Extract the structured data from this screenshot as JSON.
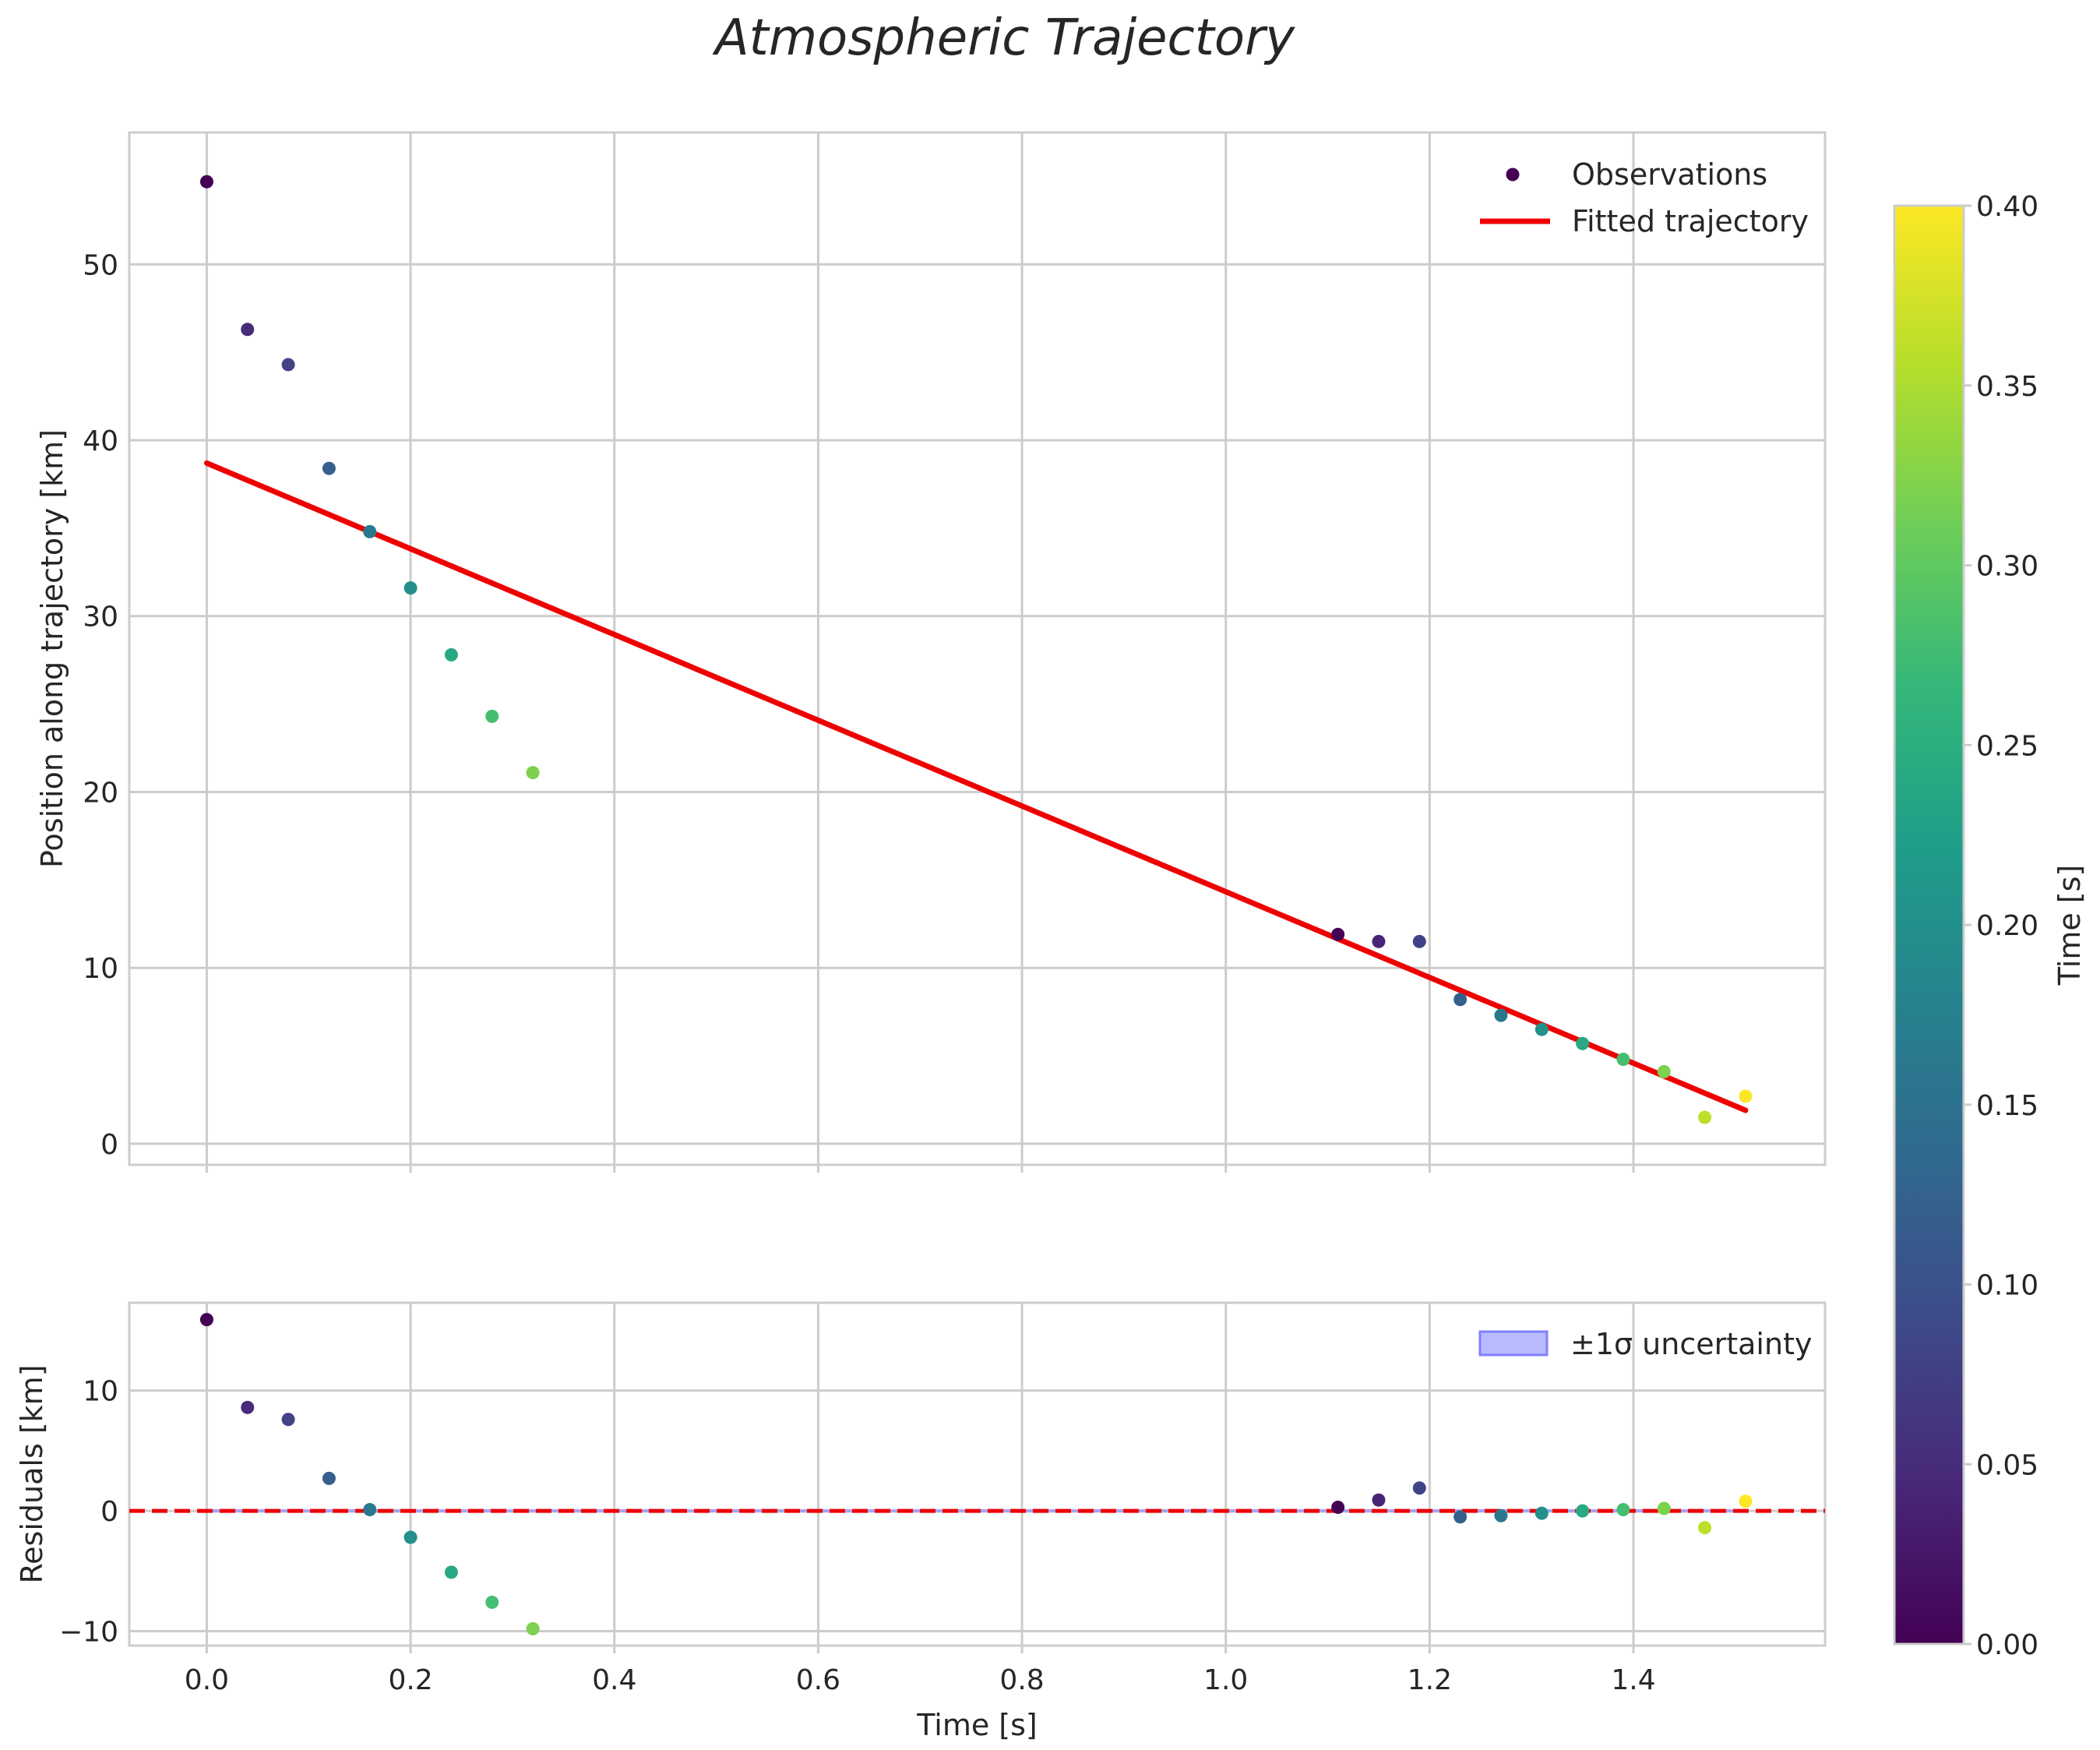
{
  "title": "Atmospheric Trajectory",
  "chart_data": [
    {
      "id": "top",
      "type": "scatter",
      "xlabel": "",
      "ylabel": "Position along trajectory [km]",
      "xlim": [
        -0.076,
        1.588
      ],
      "ylim": [
        -1.2,
        57.5
      ],
      "xticks": [
        0.0,
        0.2,
        0.4,
        0.6,
        0.8,
        1.0,
        1.2,
        1.4
      ],
      "yticks": [
        0,
        10,
        20,
        30,
        40,
        50
      ],
      "ytick_labels": [
        "0",
        "10",
        "20",
        "30",
        "40",
        "50"
      ],
      "grid": true,
      "legend": {
        "placement": "top-right",
        "observations_label": "Observations",
        "fit_label": "Fitted trajectory"
      },
      "observations": {
        "x": [
          0.0,
          0.04,
          0.08,
          0.12,
          0.16,
          0.2,
          0.24,
          0.28,
          0.32,
          1.11,
          1.15,
          1.19,
          1.23,
          1.27,
          1.31,
          1.35,
          1.39,
          1.43,
          1.47,
          1.51
        ],
        "y": [
          54.7,
          46.3,
          44.3,
          38.4,
          34.8,
          31.6,
          27.8,
          24.3,
          21.1,
          11.9,
          11.5,
          11.5,
          8.2,
          7.3,
          6.5,
          5.7,
          4.8,
          4.1,
          1.5,
          2.7
        ],
        "color_values": [
          0.0,
          0.05,
          0.08,
          0.12,
          0.16,
          0.2,
          0.24,
          0.28,
          0.32,
          0.0,
          0.04,
          0.08,
          0.12,
          0.16,
          0.2,
          0.24,
          0.28,
          0.32,
          0.36,
          0.4
        ]
      },
      "fit": {
        "color": "#ee0000",
        "x": [
          0.0,
          1.51
        ],
        "y": [
          38.7,
          1.9
        ]
      }
    },
    {
      "id": "bottom",
      "type": "scatter",
      "xlabel": "Time [s]",
      "ylabel": "Residuals [km]",
      "xlim": [
        -0.076,
        1.588
      ],
      "ylim": [
        -11.2,
        17.3
      ],
      "xticks": [
        0.0,
        0.2,
        0.4,
        0.6,
        0.8,
        1.0,
        1.2,
        1.4
      ],
      "xtick_labels": [
        "0.0",
        "0.2",
        "0.4",
        "0.6",
        "0.8",
        "1.0",
        "1.2",
        "1.4"
      ],
      "yticks": [
        -10,
        0,
        10
      ],
      "ytick_labels": [
        "−10",
        "0",
        "10"
      ],
      "grid": true,
      "legend": {
        "placement": "top-right",
        "band_label": "±1σ uncertainty",
        "band_color": "#8080ff"
      },
      "zero_line": {
        "y": 0,
        "color": "#ee0000"
      },
      "uncertainty_band": {
        "x_start": 0.0,
        "x_end": 1.51,
        "sigma": 0.15
      },
      "residuals": {
        "x": [
          0.0,
          0.04,
          0.08,
          0.12,
          0.16,
          0.2,
          0.24,
          0.28,
          0.32,
          1.11,
          1.15,
          1.19,
          1.23,
          1.27,
          1.31,
          1.35,
          1.39,
          1.43,
          1.47,
          1.51
        ],
        "y": [
          15.9,
          8.6,
          7.6,
          2.7,
          0.1,
          -2.2,
          -5.1,
          -7.6,
          -9.8,
          0.3,
          0.9,
          1.9,
          -0.5,
          -0.4,
          -0.2,
          0.0,
          0.1,
          0.2,
          -1.4,
          0.8
        ],
        "color_values": [
          0.0,
          0.05,
          0.08,
          0.12,
          0.16,
          0.2,
          0.24,
          0.28,
          0.32,
          0.0,
          0.04,
          0.08,
          0.12,
          0.16,
          0.2,
          0.24,
          0.28,
          0.32,
          0.36,
          0.4
        ]
      }
    }
  ],
  "colorbar": {
    "label": "Time [s]",
    "colormap": "viridis",
    "range": [
      0.0,
      0.4
    ],
    "ticks": [
      0.0,
      0.05,
      0.1,
      0.15,
      0.2,
      0.25,
      0.3,
      0.35,
      0.4
    ],
    "tick_labels": [
      "0.00",
      "0.05",
      "0.10",
      "0.15",
      "0.20",
      "0.25",
      "0.30",
      "0.35",
      "0.40"
    ],
    "stops": [
      "#440154",
      "#482878",
      "#3e4a89",
      "#31688e",
      "#26828e",
      "#1f9e89",
      "#35b779",
      "#6ece58",
      "#b5de2b",
      "#fde725"
    ]
  }
}
